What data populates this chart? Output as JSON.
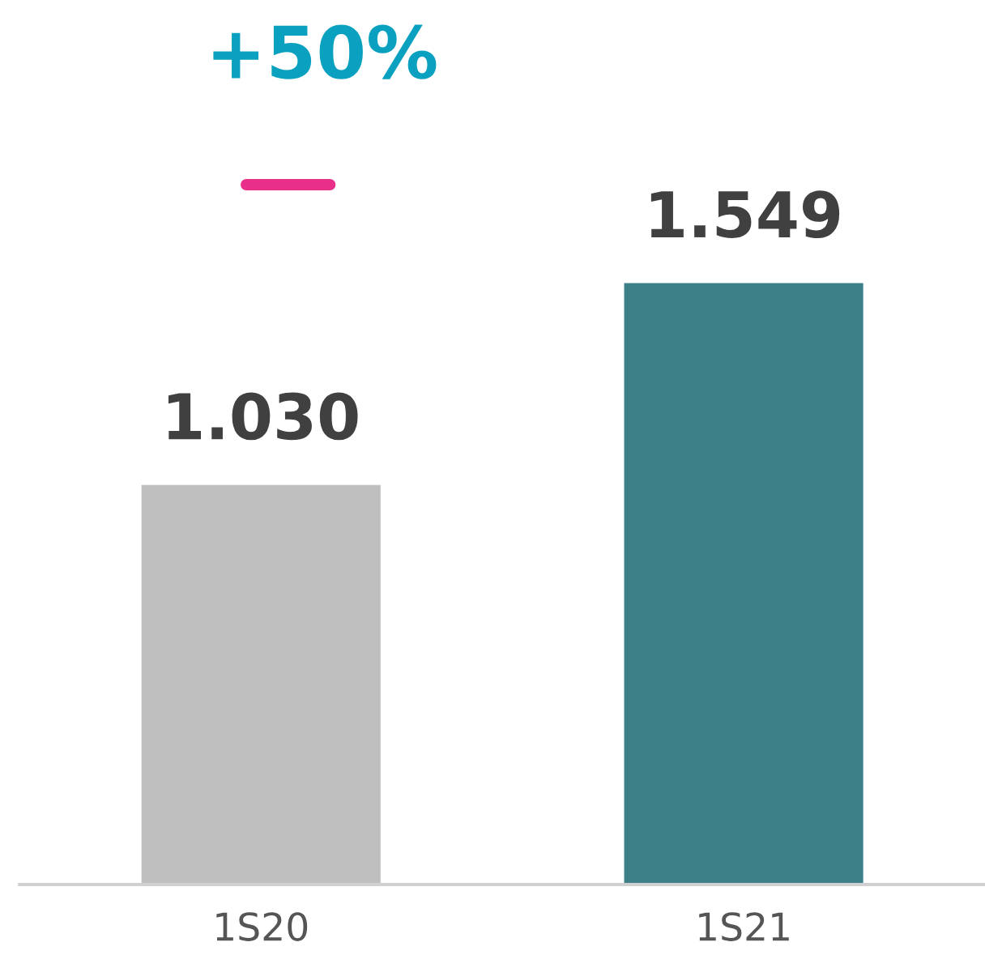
{
  "chart_data": {
    "type": "bar",
    "categories": [
      "1S20",
      "1S21"
    ],
    "values": [
      1030,
      1549
    ],
    "colors": [
      "#bfbfbf",
      "#3e8088"
    ],
    "value_labels": [
      "1.030",
      "1.549"
    ],
    "annotations": [
      "+50%"
    ],
    "grid": false,
    "legend": false
  }
}
